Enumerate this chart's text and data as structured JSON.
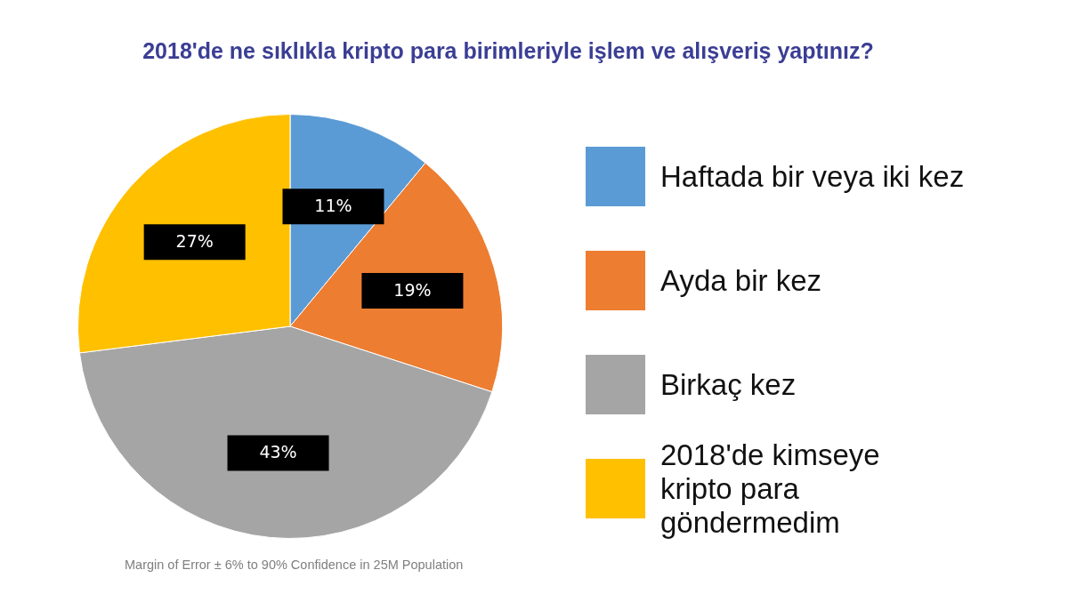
{
  "chart_data": {
    "type": "pie",
    "title": "2018'de ne sıklıkla kripto para birimleriyle işlem ve alışveriş yaptınız?",
    "categories": [
      "Haftada bir veya iki kez",
      "Ayda bir kez",
      "Birkaç kez",
      "2018'de kimseye\nkripto para\ngöndermedim"
    ],
    "values": [
      11,
      19,
      43,
      27
    ],
    "colors": [
      "#5b9bd5",
      "#ed7d31",
      "#a5a5a5",
      "#ffc000"
    ],
    "value_labels": [
      "11%",
      "19%",
      "43%",
      "27%"
    ],
    "legend": "right",
    "annotations": [
      "Margin of Error ± 6% to 90% Confidence in 25M Population"
    ]
  }
}
